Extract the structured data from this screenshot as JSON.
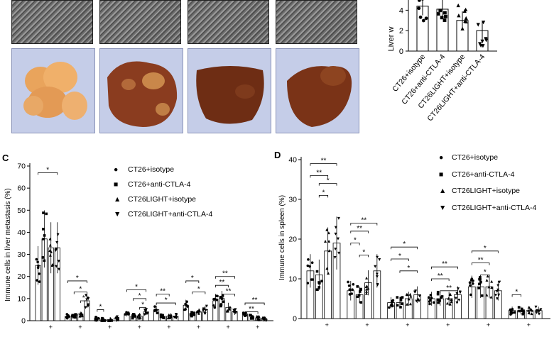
{
  "panel_c": {
    "letter": "C",
    "ylabel": "Immune cells in liver metastasis (%)",
    "yticks": [
      "0",
      "10",
      "20",
      "30",
      "40",
      "50",
      "60",
      "70"
    ],
    "xtick_fragments": [
      "+",
      "+",
      "+",
      "+",
      "+",
      "+",
      "+",
      "+"
    ],
    "sig_labels": [
      "*",
      "*",
      "*",
      "*",
      "*",
      "*",
      "*",
      "*",
      "*",
      "**",
      "*",
      "*",
      "**",
      "**",
      "**",
      "**",
      "**"
    ]
  },
  "panel_d": {
    "letter": "D",
    "ylabel": "Immune cells in spleen (%)",
    "yticks": [
      "0",
      "10",
      "20",
      "30",
      "40"
    ],
    "xtick_fragments": [
      "+",
      "+",
      "+",
      "+",
      "+",
      "+"
    ],
    "sig_labels": [
      "**",
      "**",
      "*",
      "*",
      "**",
      "**",
      "*",
      "*",
      "*",
      "*",
      "*",
      "**",
      "**",
      "**",
      "*",
      "**",
      "*",
      "*"
    ]
  },
  "panel_b": {
    "ylabel": "Liver w",
    "yticks": [
      "0",
      "2",
      "4"
    ]
  },
  "legend": {
    "entries": [
      "CT26+isotype",
      "CT26+anti-CTLA-4",
      "CT26LIGHT+isotype",
      "CT26LIGHT+anti-CTLA-4"
    ],
    "symbols": [
      "●",
      "■",
      "▲",
      "▼"
    ]
  },
  "chart_data": [
    {
      "type": "bar",
      "title": "",
      "ylabel": "Liver w",
      "ylim": [
        0,
        5
      ],
      "categories": [
        "CT26+isotype",
        "CT26+anti-CTLA-4",
        "CT26LIGHT+isotype",
        "CT26LIGHT+anti-CTLA-4"
      ],
      "values": [
        4.4,
        4.1,
        3.0,
        2.0
      ]
    },
    {
      "type": "bar",
      "title": "",
      "ylabel": "Immune cells in liver metastasis (%)",
      "ylim": [
        0,
        70
      ],
      "groups": 8,
      "series": [
        {
          "name": "CT26+isotype",
          "values": [
            25,
            2,
            1,
            3,
            5,
            7,
            9,
            3
          ]
        },
        {
          "name": "CT26+anti-CTLA-4",
          "values": [
            37,
            2,
            0.5,
            2,
            2,
            3,
            10,
            2
          ]
        },
        {
          "name": "CT26LIGHT+isotype",
          "values": [
            33,
            3,
            0.5,
            2,
            2,
            4,
            6,
            1
          ]
        },
        {
          "name": "CT26LIGHT+anti-CTLA-4",
          "values": [
            33,
            9,
            1,
            4,
            2,
            5,
            4,
            1
          ]
        }
      ]
    },
    {
      "type": "bar",
      "title": "",
      "ylabel": "Immune cells in spleen (%)",
      "ylim": [
        0,
        40
      ],
      "groups": 6,
      "series": [
        {
          "name": "CT26+isotype",
          "values": [
            12,
            7,
            4,
            5,
            8,
            2
          ]
        },
        {
          "name": "CT26+anti-CTLA-4",
          "values": [
            11,
            6,
            4,
            5,
            8,
            2
          ]
        },
        {
          "name": "CT26LIGHT+isotype",
          "values": [
            17,
            9,
            5,
            5,
            8,
            2
          ]
        },
        {
          "name": "CT26LIGHT+anti-CTLA-4",
          "values": [
            19,
            12,
            6,
            6,
            7,
            2
          ]
        }
      ]
    }
  ]
}
